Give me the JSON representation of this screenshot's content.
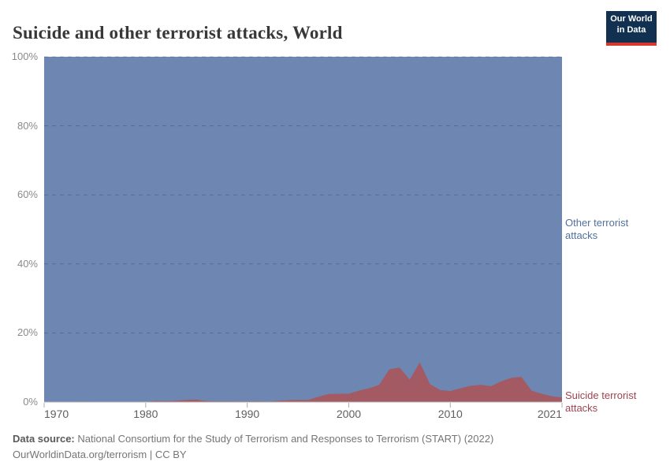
{
  "header": {
    "title": "Suicide and other terrorist attacks, World"
  },
  "logo": {
    "line1": "Our World",
    "line2": "in Data",
    "bg_color": "#12304f",
    "bar_color": "#d7382d"
  },
  "legend": {
    "other_label": "Other terrorist attacks",
    "suicide_label": "Suicide terrorist attacks",
    "other_text_color": "#54719d",
    "suicide_text_color": "#9c4450"
  },
  "footer": {
    "source_label": "Data source:",
    "source_text": " National Consortium for the Study of Terrorism and Responses to Terrorism (START) (2022)",
    "license_line": "OurWorldinData.org/terrorism | CC BY"
  },
  "chart_data": {
    "type": "area",
    "stacked": true,
    "percent_scale": true,
    "title": "Suicide and other terrorist attacks, World",
    "xlabel": "",
    "ylabel": "",
    "ylim": [
      0,
      100
    ],
    "grid": "dashed-horizontal",
    "legend_position": "right-of-plot",
    "x": [
      1970,
      1971,
      1972,
      1973,
      1974,
      1975,
      1976,
      1977,
      1978,
      1979,
      1980,
      1981,
      1982,
      1983,
      1984,
      1985,
      1986,
      1987,
      1988,
      1989,
      1990,
      1991,
      1992,
      1993,
      1994,
      1995,
      1996,
      1997,
      1998,
      1999,
      2000,
      2001,
      2002,
      2003,
      2004,
      2005,
      2006,
      2007,
      2008,
      2009,
      2010,
      2011,
      2012,
      2013,
      2014,
      2015,
      2016,
      2017,
      2018,
      2019,
      2020,
      2021
    ],
    "series": [
      {
        "name": "Suicide terrorist attacks",
        "color": "#a35a62",
        "values": [
          0.1,
          0.1,
          0.1,
          0.1,
          0.15,
          0.1,
          0.1,
          0.1,
          0.1,
          0.1,
          0.1,
          0.35,
          0.25,
          0.4,
          0.65,
          0.7,
          0.3,
          0.2,
          0.25,
          0.15,
          0.2,
          0.25,
          0.15,
          0.35,
          0.55,
          0.65,
          0.6,
          1.5,
          2.3,
          2.4,
          2.4,
          3.3,
          4.0,
          5.0,
          9.5,
          10.0,
          6.5,
          11.5,
          5.2,
          3.5,
          3.2,
          4.0,
          4.7,
          5.0,
          4.6,
          6.0,
          7.0,
          7.3,
          3.3,
          2.4,
          1.7,
          1.3
        ]
      },
      {
        "name": "Other terrorist attacks",
        "color": "#6e87b2",
        "values": [
          99.9,
          99.9,
          99.9,
          99.9,
          99.85,
          99.9,
          99.9,
          99.9,
          99.9,
          99.9,
          99.9,
          99.65,
          99.75,
          99.6,
          99.35,
          99.3,
          99.7,
          99.8,
          99.75,
          99.85,
          99.8,
          99.75,
          99.85,
          99.65,
          99.45,
          99.35,
          99.4,
          98.5,
          97.7,
          97.6,
          97.6,
          96.7,
          96.0,
          95.0,
          90.5,
          90.0,
          93.5,
          88.5,
          94.8,
          96.5,
          96.8,
          96.0,
          95.3,
          95.0,
          95.4,
          94.0,
          93.0,
          92.7,
          96.7,
          97.6,
          98.3,
          98.7
        ]
      }
    ],
    "yticks": {
      "values": [
        0,
        20,
        40,
        60,
        80,
        100
      ],
      "labels": [
        "0%",
        "20%",
        "40%",
        "60%",
        "80%",
        "100%"
      ]
    },
    "xticks": {
      "values": [
        1970,
        1980,
        1990,
        2000,
        2010,
        2021
      ],
      "labels": [
        "1970",
        "1980",
        "1990",
        "2000",
        "2010",
        "2021"
      ]
    },
    "gridline_color": "rgba(15,25,55,0.25)",
    "axis_tick_color": "#adadad"
  }
}
